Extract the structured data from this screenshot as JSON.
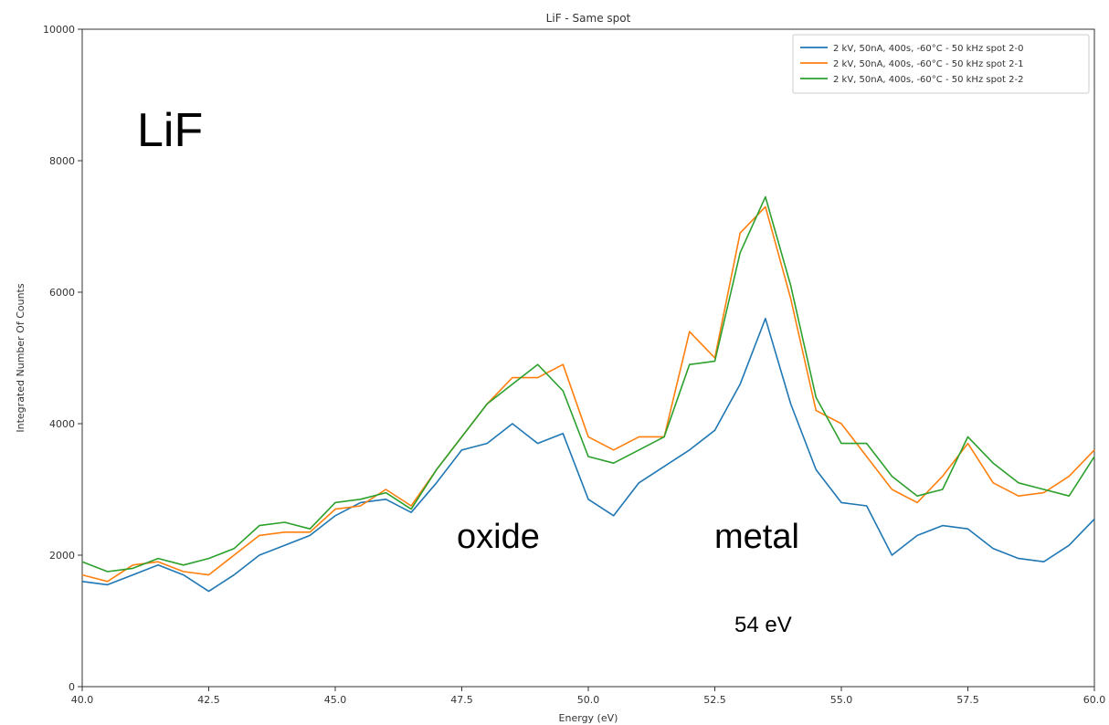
{
  "chart_data": {
    "type": "line",
    "title": "LiF - Same spot",
    "xlabel": "Energy (eV)",
    "ylabel": "Integrated Number Of Counts",
    "xlim": [
      40.0,
      60.0
    ],
    "ylim": [
      0,
      10000
    ],
    "xticks": [
      "40.0",
      "42.5",
      "45.0",
      "47.5",
      "50.0",
      "52.5",
      "55.0",
      "57.5",
      "60.0"
    ],
    "yticks": [
      "0",
      "2000",
      "4000",
      "6000",
      "8000",
      "10000"
    ],
    "grid": false,
    "legend_position": "top-right",
    "x": [
      40.0,
      40.5,
      41.0,
      41.5,
      42.0,
      42.5,
      43.0,
      43.5,
      44.0,
      44.5,
      45.0,
      45.5,
      46.0,
      46.5,
      47.0,
      47.5,
      48.0,
      48.5,
      49.0,
      49.5,
      50.0,
      50.5,
      51.0,
      51.5,
      52.0,
      52.5,
      53.0,
      53.5,
      54.0,
      54.5,
      55.0,
      55.5,
      56.0,
      56.5,
      57.0,
      57.5,
      58.0,
      58.5,
      59.0,
      59.5,
      60.0
    ],
    "series": [
      {
        "name": "2 kV, 50nA, 400s, -60°C - 50 kHz spot 2-0",
        "color": "#1f77b4",
        "values": [
          1600,
          1550,
          1700,
          1850,
          1700,
          1450,
          1700,
          2000,
          2150,
          2300,
          2600,
          2800,
          2850,
          2650,
          3100,
          3600,
          3700,
          4000,
          3700,
          3850,
          2850,
          2600,
          3100,
          3350,
          3600,
          3900,
          4600,
          5600,
          4300,
          3300,
          2800,
          2750,
          2000,
          2300,
          2450,
          2400,
          2100,
          1950,
          1900,
          2150,
          2550
        ]
      },
      {
        "name": "2 kV, 50nA, 400s, -60°C - 50 kHz spot 2-1",
        "color": "#ff7f0e",
        "values": [
          1700,
          1600,
          1850,
          1900,
          1750,
          1700,
          2000,
          2300,
          2350,
          2350,
          2700,
          2750,
          3000,
          2750,
          3300,
          3800,
          4300,
          4700,
          4700,
          4900,
          3800,
          3600,
          3800,
          3800,
          5400,
          5000,
          6900,
          7300,
          5900,
          4200,
          4000,
          3500,
          3000,
          2800,
          3200,
          3700,
          3100,
          2900,
          2950,
          3200,
          3600
        ]
      },
      {
        "name": "2 kV, 50nA, 400s, -60°C - 50 kHz spot 2-2",
        "color": "#2ca02c",
        "values": [
          1900,
          1750,
          1800,
          1950,
          1850,
          1950,
          2100,
          2450,
          2500,
          2400,
          2800,
          2850,
          2950,
          2700,
          3300,
          3800,
          4300,
          4600,
          4900,
          4500,
          3500,
          3400,
          3600,
          3800,
          4900,
          4950,
          6600,
          7450,
          6100,
          4400,
          3700,
          3700,
          3200,
          2900,
          3000,
          3800,
          3400,
          3100,
          3000,
          2900,
          3500
        ]
      }
    ],
    "annotations": {
      "material": "LiF",
      "oxide": "oxide",
      "metal": "metal",
      "energy": "54 eV"
    }
  }
}
